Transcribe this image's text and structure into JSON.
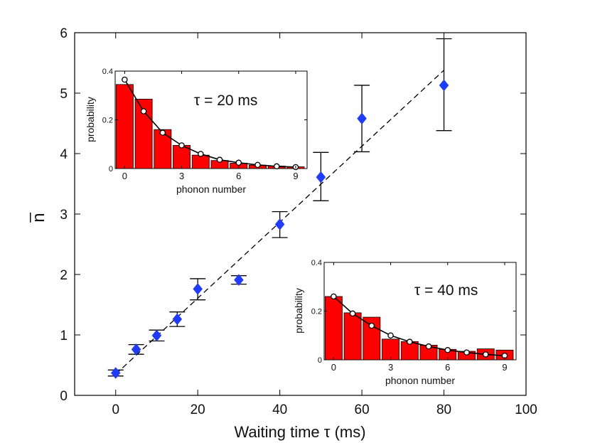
{
  "chart_data": [
    {
      "type": "scatter",
      "name": "main",
      "xlabel": "Waiting time τ (ms)",
      "ylabel": "n̅",
      "xlim": [
        -10,
        100
      ],
      "ylim": [
        0,
        6
      ],
      "xticks": [
        0,
        20,
        40,
        60,
        80,
        100
      ],
      "yticks": [
        0,
        1,
        2,
        3,
        4,
        5,
        6
      ],
      "xtick_labels": [
        "0",
        "20",
        "40",
        "60",
        "80",
        "100"
      ],
      "ytick_labels": [
        "0",
        "1",
        "2",
        "3",
        "4",
        "5",
        "6"
      ],
      "series": [
        {
          "name": "measured",
          "marker": "diamond",
          "color": "#1f3bff",
          "x": [
            0,
            5,
            10,
            15,
            20,
            30,
            40,
            50,
            60,
            80
          ],
          "y": [
            0.37,
            0.76,
            0.99,
            1.26,
            1.76,
            1.91,
            2.83,
            3.61,
            4.58,
            5.13
          ],
          "err_low": [
            0.05,
            0.08,
            0.09,
            0.12,
            0.18,
            0.07,
            0.22,
            0.39,
            0.55,
            0.75
          ],
          "err_high": [
            0.05,
            0.08,
            0.09,
            0.12,
            0.17,
            0.07,
            0.21,
            0.41,
            0.55,
            0.77
          ]
        },
        {
          "name": "linear fit",
          "style": "dashed",
          "color": "#000000",
          "x": [
            0,
            80
          ],
          "y": [
            0.35,
            5.38
          ]
        }
      ]
    },
    {
      "type": "bar",
      "name": "inset-20ms",
      "annotation": "τ = 20 ms",
      "xlabel": "phonon number",
      "ylabel": "probability",
      "ylim": [
        0,
        0.4
      ],
      "xticks": [
        0,
        3,
        6,
        9
      ],
      "xtick_labels": [
        "0",
        "3",
        "6",
        "9"
      ],
      "yticks": [
        0,
        0.2,
        0.4
      ],
      "ytick_labels": [
        "0",
        "0.2",
        "0.4"
      ],
      "bar_color": "#ff0000",
      "categories": [
        0,
        1,
        2,
        3,
        4,
        5,
        6,
        7,
        8,
        9
      ],
      "values": [
        0.345,
        0.285,
        0.16,
        0.095,
        0.055,
        0.033,
        0.022,
        0.014,
        0.01,
        0.007
      ],
      "fit_values": [
        0.365,
        0.235,
        0.147,
        0.095,
        0.06,
        0.036,
        0.024,
        0.015,
        0.009,
        0.006
      ]
    },
    {
      "type": "bar",
      "name": "inset-40ms",
      "annotation": "τ = 40 ms",
      "xlabel": "phonon number",
      "ylabel": "probability",
      "ylim": [
        0,
        0.4
      ],
      "xticks": [
        0,
        3,
        6,
        9
      ],
      "xtick_labels": [
        "0",
        "3",
        "6",
        "9"
      ],
      "yticks": [
        0,
        0.2,
        0.4
      ],
      "ytick_labels": [
        "0",
        "0.2",
        "0.4"
      ],
      "bar_color": "#ff0000",
      "categories": [
        0,
        1,
        2,
        3,
        4,
        5,
        6,
        7,
        8,
        9
      ],
      "values": [
        0.26,
        0.193,
        0.175,
        0.085,
        0.075,
        0.06,
        0.043,
        0.035,
        0.045,
        0.04
      ],
      "fit_values": [
        0.26,
        0.19,
        0.14,
        0.1,
        0.074,
        0.055,
        0.04,
        0.03,
        0.022,
        0.017
      ]
    }
  ]
}
